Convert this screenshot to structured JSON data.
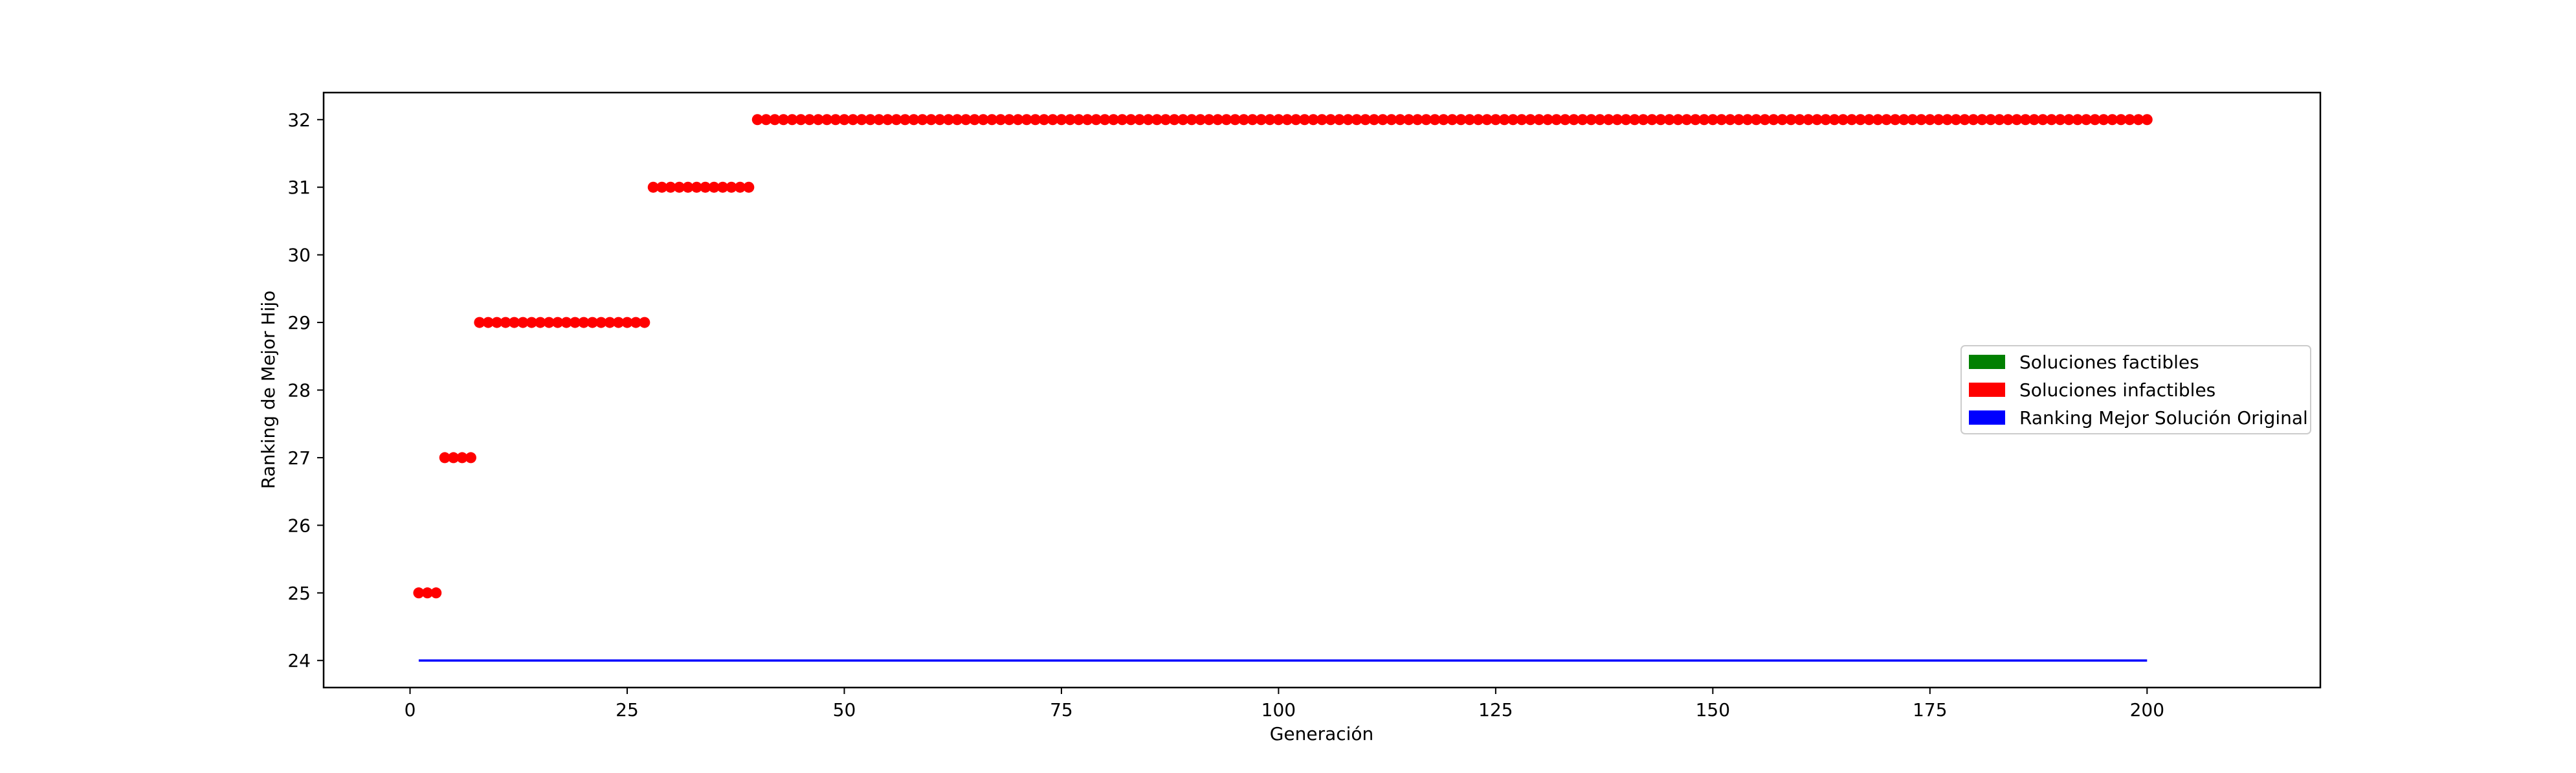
{
  "chart_data": {
    "type": "scatter",
    "xlabel": "Generación",
    "ylabel": "Ranking de Mejor Hijo",
    "xlim": [
      -9.95,
      219.95
    ],
    "ylim": [
      23.6,
      32.4
    ],
    "xticks": [
      0,
      25,
      50,
      75,
      100,
      125,
      150,
      175,
      200
    ],
    "yticks": [
      24,
      25,
      26,
      27,
      28,
      29,
      30,
      31,
      32
    ],
    "grid": false,
    "legend_position": "center-right",
    "series": [
      {
        "name": "Soluciones infactibles",
        "kind": "points",
        "color": "#ff0000",
        "segments": [
          {
            "x_from": 1,
            "x_to": 3,
            "y": 25
          },
          {
            "x_from": 4,
            "x_to": 7,
            "y": 27
          },
          {
            "x_from": 8,
            "x_to": 27,
            "y": 29
          },
          {
            "x_from": 28,
            "x_to": 39,
            "y": 31
          },
          {
            "x_from": 40,
            "x_to": 200,
            "y": 32
          }
        ]
      },
      {
        "name": "Ranking Mejor Solución Original",
        "kind": "line",
        "color": "#0000ff",
        "x": [
          1,
          200
        ],
        "y": [
          24,
          24
        ]
      }
    ],
    "legend": [
      {
        "label": "Soluciones factibles",
        "color": "#008000"
      },
      {
        "label": "Soluciones infactibles",
        "color": "#ff0000"
      },
      {
        "label": "Ranking Mejor Solución Original",
        "color": "#0000ff"
      }
    ]
  }
}
